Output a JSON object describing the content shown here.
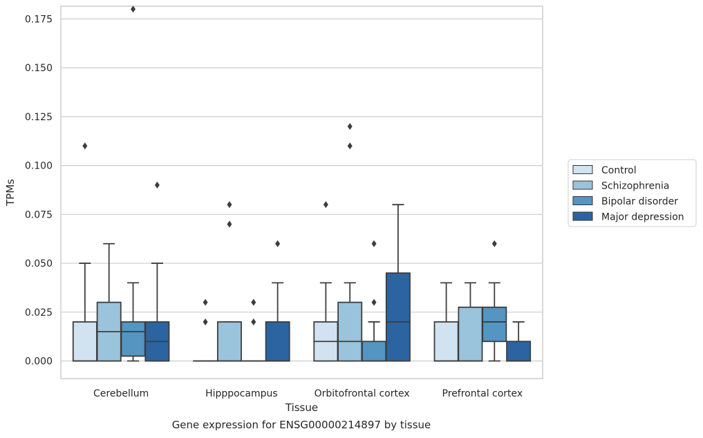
{
  "caption": "Gene expression for ENSG00000214897 by tissue",
  "chart_data": {
    "type": "box",
    "xlabel": "Tissue",
    "ylabel": "TPMs",
    "ylim": [
      -0.009,
      0.1815
    ],
    "yticks": [
      0.0,
      0.025,
      0.05,
      0.075,
      0.1,
      0.125,
      0.15,
      0.175
    ],
    "ytick_labels": [
      "0.000",
      "0.025",
      "0.050",
      "0.075",
      "0.100",
      "0.125",
      "0.150",
      "0.175"
    ],
    "grid": "horizontal",
    "legend_position": "right",
    "categories": [
      "Cerebellum",
      "Hipppocampus",
      "Orbitofrontal cortex",
      "Prefrontal cortex"
    ],
    "series": [
      {
        "name": "Control",
        "color": "#d1e2f1",
        "boxes": [
          {
            "q1": 0.0,
            "median": 0.0,
            "q3": 0.02,
            "whisker_low": 0.0,
            "whisker_high": 0.05,
            "outliers": [
              0.11
            ]
          },
          {
            "q1": 0.0,
            "median": 0.0,
            "q3": 0.0,
            "whisker_low": 0.0,
            "whisker_high": 0.0,
            "outliers": [
              0.02,
              0.03
            ]
          },
          {
            "q1": 0.0,
            "median": 0.01,
            "q3": 0.02,
            "whisker_low": 0.0,
            "whisker_high": 0.04,
            "outliers": [
              0.08
            ]
          },
          {
            "q1": 0.0,
            "median": 0.0,
            "q3": 0.02,
            "whisker_low": 0.0,
            "whisker_high": 0.04,
            "outliers": []
          }
        ]
      },
      {
        "name": "Schizophrenia",
        "color": "#9ac3dc",
        "boxes": [
          {
            "q1": 0.0,
            "median": 0.015,
            "q3": 0.03,
            "whisker_low": 0.0,
            "whisker_high": 0.06,
            "outliers": []
          },
          {
            "q1": 0.0,
            "median": 0.0,
            "q3": 0.02,
            "whisker_low": 0.0,
            "whisker_high": 0.02,
            "outliers": [
              0.07,
              0.08
            ]
          },
          {
            "q1": 0.0,
            "median": 0.01,
            "q3": 0.03,
            "whisker_low": 0.0,
            "whisker_high": 0.04,
            "outliers": [
              0.11,
              0.12
            ]
          },
          {
            "q1": 0.0,
            "median": 0.0,
            "q3": 0.0275,
            "whisker_low": 0.0,
            "whisker_high": 0.04,
            "outliers": []
          }
        ]
      },
      {
        "name": "Bipolar disorder",
        "color": "#5495c1",
        "boxes": [
          {
            "q1": 0.0025,
            "median": 0.015,
            "q3": 0.02,
            "whisker_low": 0.0,
            "whisker_high": 0.04,
            "outliers": [
              0.18
            ]
          },
          {
            "q1": 0.0,
            "median": 0.0,
            "q3": 0.0,
            "whisker_low": 0.0,
            "whisker_high": 0.0,
            "outliers": [
              0.02,
              0.03
            ]
          },
          {
            "q1": 0.0,
            "median": 0.0,
            "q3": 0.01,
            "whisker_low": 0.0,
            "whisker_high": 0.02,
            "outliers": [
              0.03,
              0.06
            ]
          },
          {
            "q1": 0.01,
            "median": 0.02,
            "q3": 0.0275,
            "whisker_low": 0.0,
            "whisker_high": 0.04,
            "outliers": [
              0.06
            ]
          }
        ]
      },
      {
        "name": "Major depression",
        "color": "#2b64a0",
        "boxes": [
          {
            "q1": 0.0,
            "median": 0.01,
            "q3": 0.02,
            "whisker_low": 0.0,
            "whisker_high": 0.05,
            "outliers": [
              0.09
            ]
          },
          {
            "q1": 0.0,
            "median": 0.0,
            "q3": 0.02,
            "whisker_low": 0.0,
            "whisker_high": 0.04,
            "outliers": [
              0.06
            ]
          },
          {
            "q1": 0.0,
            "median": 0.02,
            "q3": 0.045,
            "whisker_low": 0.0,
            "whisker_high": 0.08,
            "outliers": []
          },
          {
            "q1": 0.0,
            "median": 0.0,
            "q3": 0.01,
            "whisker_low": 0.0,
            "whisker_high": 0.02,
            "outliers": []
          }
        ]
      }
    ]
  }
}
